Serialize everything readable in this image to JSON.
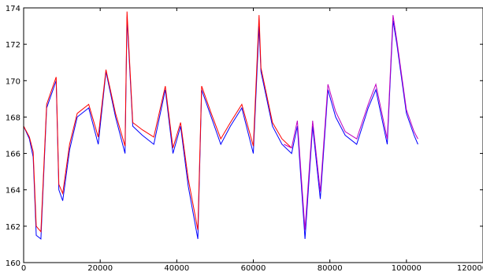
{
  "chart_data": {
    "type": "line",
    "title": "",
    "xlabel": "",
    "ylabel": "",
    "xlim": [
      0,
      120000
    ],
    "ylim": [
      160,
      174
    ],
    "grid": false,
    "x_ticks": [
      0,
      20000,
      40000,
      60000,
      80000,
      100000,
      120000
    ],
    "x_tick_labels": [
      "0",
      "20000",
      "40000",
      "60000",
      "80000",
      "100000",
      "120000"
    ],
    "y_ticks": [
      160,
      162,
      164,
      166,
      168,
      170,
      172,
      174
    ],
    "y_tick_labels": [
      "160",
      "162",
      "164",
      "166",
      "168",
      "170",
      "172",
      "174"
    ],
    "series": [
      {
        "color": "#0000ff",
        "x": [
          0,
          1500,
          2500,
          3300,
          4500,
          6000,
          8500,
          9200,
          10200,
          12000,
          14000,
          17000,
          19500,
          21500,
          24000,
          26500,
          27000,
          28500,
          31000,
          34000,
          37000,
          39000,
          41000,
          43000,
          45500,
          46500,
          49000,
          51500,
          54000,
          57000,
          60000,
          61500,
          62000,
          65000,
          67500,
          70000,
          71500,
          73500,
          75500,
          77500,
          79500,
          81500,
          84000,
          87000,
          90000,
          92000,
          95000,
          96500,
          97500,
          100000,
          102000,
          103000
        ],
        "y": [
          167.5,
          166.8,
          165.8,
          161.5,
          161.3,
          168.5,
          170,
          164,
          163.4,
          166.2,
          168,
          168.5,
          166.5,
          170.5,
          168,
          166,
          173.5,
          167.5,
          167,
          166.5,
          169.5,
          166,
          167.5,
          164.2,
          161.3,
          169.5,
          168,
          166.5,
          167.5,
          168.5,
          166,
          173,
          170.5,
          167.5,
          166.5,
          166,
          167.5,
          161.3,
          167.5,
          163.5,
          169.5,
          168,
          167,
          166.5,
          168.5,
          169.5,
          166.5,
          173.3,
          172,
          168.2,
          167,
          166.5
        ]
      },
      {
        "color": "#ff0000",
        "x": [
          0,
          1500,
          2500,
          3300,
          4500,
          6000,
          8500,
          9200,
          10200,
          12000,
          14000,
          17000,
          19500,
          21500,
          24000,
          26500,
          27000,
          28500,
          31000,
          34000,
          37000,
          39000,
          41000,
          43000,
          45500,
          46500,
          49000,
          51500,
          54000,
          57000,
          60000,
          61500,
          62000,
          65000,
          67500,
          70000
        ],
        "y": [
          167.5,
          166.9,
          166.1,
          162,
          161.7,
          168.7,
          170.2,
          164.3,
          163.8,
          166.5,
          168.2,
          168.7,
          166.9,
          170.6,
          168.2,
          166.4,
          173.8,
          167.7,
          167.3,
          166.9,
          169.7,
          166.3,
          167.7,
          164.6,
          161.8,
          169.7,
          168.2,
          166.8,
          167.7,
          168.7,
          166.4,
          173.6,
          170.7,
          167.7,
          166.8,
          166.3
        ]
      },
      {
        "color": "#bf00bf",
        "x": [
          68000,
          70000,
          71500,
          73500,
          75500,
          77500,
          79500,
          81500,
          84000,
          87000,
          90000,
          92000,
          95000,
          96500,
          97500,
          100000,
          102000,
          103000
        ],
        "y": [
          166.5,
          166.3,
          167.8,
          161.8,
          167.8,
          163.9,
          169.8,
          168.3,
          167.2,
          166.8,
          168.7,
          169.8,
          166.8,
          173.6,
          172.2,
          168.4,
          167.2,
          166.8
        ]
      }
    ]
  }
}
